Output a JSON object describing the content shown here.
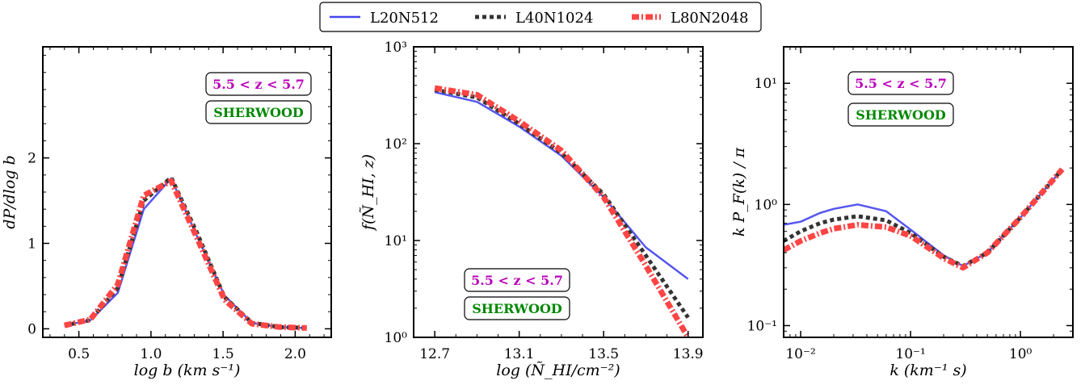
{
  "legend": {
    "placement": "top-center",
    "entries": [
      {
        "label": "L20N512",
        "color": "#4444ee",
        "style": "solid"
      },
      {
        "label": "L40N1024",
        "color": "#333333",
        "style": "dotted"
      },
      {
        "label": "L80N2048",
        "color": "#ff4444",
        "style": "dash-dot-thick"
      }
    ]
  },
  "annotations": {
    "redshift": "5.5 < z < 5.7",
    "simulation": "SHERWOOD",
    "redshift_color": "#bb00bb",
    "simulation_color": "#008800"
  },
  "chart_data": [
    {
      "type": "line",
      "xlabel": "log b (km s⁻¹)",
      "ylabel": "dP/dlog b",
      "xlim": [
        0.25,
        2.25
      ],
      "ylim": [
        -0.1,
        3.3
      ],
      "yscale": "linear",
      "x_ticks": [
        0.5,
        1.0,
        1.5,
        2.0
      ],
      "x_tick_labels": [
        "0.5",
        "1.0",
        "1.5",
        "2.0"
      ],
      "y_ticks": [
        0,
        1,
        2
      ],
      "y_tick_labels": [
        "0",
        "1",
        "2"
      ],
      "series": [
        {
          "name": "L20N512",
          "x": [
            0.4,
            0.58,
            0.77,
            0.95,
            1.14,
            1.32,
            1.51,
            1.7,
            1.89,
            2.08
          ],
          "y": [
            0.04,
            0.1,
            0.42,
            1.4,
            1.76,
            1.08,
            0.39,
            0.07,
            0.02,
            0.01
          ]
        },
        {
          "name": "L40N1024",
          "x": [
            0.4,
            0.58,
            0.77,
            0.95,
            1.14,
            1.32,
            1.51,
            1.7,
            1.89,
            2.08
          ],
          "y": [
            0.04,
            0.1,
            0.48,
            1.5,
            1.77,
            1.12,
            0.37,
            0.07,
            0.02,
            0.01
          ]
        },
        {
          "name": "L80N2048",
          "x": [
            0.4,
            0.58,
            0.77,
            0.95,
            1.14,
            1.32,
            1.51,
            1.7,
            1.89,
            2.08
          ],
          "y": [
            0.04,
            0.11,
            0.52,
            1.56,
            1.73,
            1.06,
            0.34,
            0.06,
            0.02,
            0.01
          ]
        }
      ],
      "grid": false
    },
    {
      "type": "line",
      "xlabel": "log (Ñ_HI/cm⁻²)",
      "ylabel": "f(Ñ_HI, z)",
      "xlim": [
        12.6,
        13.97
      ],
      "ylim": [
        1,
        1000
      ],
      "yscale": "log",
      "x_ticks": [
        12.7,
        13.1,
        13.5,
        13.9
      ],
      "x_tick_labels": [
        "12.7",
        "13.1",
        "13.5",
        "13.9"
      ],
      "y_ticks": [
        1,
        10,
        100,
        1000
      ],
      "y_tick_labels": [
        "10⁰",
        "10¹",
        "10²",
        "10³"
      ],
      "series": [
        {
          "name": "L20N512",
          "x": [
            12.7,
            12.9,
            13.1,
            13.3,
            13.5,
            13.7,
            13.9
          ],
          "y": [
            340,
            270,
            150,
            75,
            28,
            8.5,
            4.0
          ]
        },
        {
          "name": "L40N1024",
          "x": [
            12.7,
            12.9,
            13.1,
            13.3,
            13.5,
            13.7,
            13.9
          ],
          "y": [
            360,
            300,
            160,
            80,
            30,
            7,
            1.6
          ]
        },
        {
          "name": "L80N2048",
          "x": [
            12.7,
            12.9,
            13.1,
            13.3,
            13.5,
            13.7,
            13.9
          ],
          "y": [
            375,
            320,
            170,
            85,
            28,
            5.5,
            1.0
          ]
        }
      ],
      "grid": false
    },
    {
      "type": "line",
      "xlabel": "k (km⁻¹ s)",
      "ylabel": "k P_F(k) / π",
      "xlim": [
        0.007,
        3.0
      ],
      "ylim": [
        0.08,
        20
      ],
      "xscale": "log",
      "yscale": "log",
      "x_ticks": [
        0.01,
        0.1,
        1
      ],
      "x_tick_labels": [
        "10⁻²",
        "10⁻¹",
        "10⁰"
      ],
      "y_ticks": [
        0.1,
        1,
        10
      ],
      "y_tick_labels": [
        "10⁻¹",
        "10⁰",
        "10¹"
      ],
      "series": [
        {
          "name": "L20N512",
          "x": [
            0.007,
            0.01,
            0.015,
            0.02,
            0.033,
            0.06,
            0.1,
            0.2,
            0.3,
            0.5,
            1.0,
            2.4
          ],
          "y": [
            0.68,
            0.72,
            0.85,
            0.92,
            1.0,
            0.88,
            0.62,
            0.38,
            0.31,
            0.4,
            0.78,
            1.95
          ]
        },
        {
          "name": "L40N1024",
          "x": [
            0.007,
            0.01,
            0.015,
            0.02,
            0.033,
            0.06,
            0.1,
            0.2,
            0.3,
            0.5,
            1.0,
            2.4
          ],
          "y": [
            0.5,
            0.6,
            0.7,
            0.75,
            0.8,
            0.74,
            0.58,
            0.37,
            0.31,
            0.4,
            0.78,
            1.95
          ]
        },
        {
          "name": "L80N2048",
          "x": [
            0.007,
            0.01,
            0.015,
            0.02,
            0.033,
            0.06,
            0.1,
            0.2,
            0.3,
            0.5,
            1.0,
            2.4
          ],
          "y": [
            0.42,
            0.5,
            0.58,
            0.63,
            0.68,
            0.65,
            0.55,
            0.36,
            0.3,
            0.4,
            0.78,
            1.95
          ]
        }
      ],
      "grid": false
    }
  ]
}
